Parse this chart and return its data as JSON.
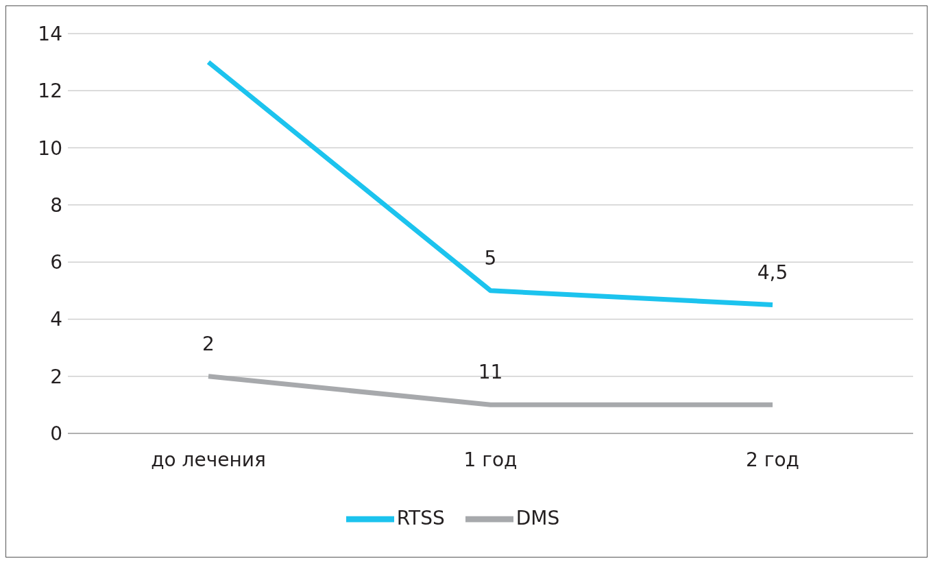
{
  "chart_data": {
    "type": "line",
    "categories": [
      "до лечения",
      "1 год",
      "2 год"
    ],
    "series": [
      {
        "name": "RTSS",
        "color": "#1cc3ee",
        "values": [
          13,
          5,
          4.5
        ],
        "value_labels": [
          null,
          "5",
          "4,5"
        ]
      },
      {
        "name": "DMS",
        "color": "#a7a9ac",
        "values": [
          2,
          1,
          1
        ],
        "value_labels": [
          "2",
          null,
          null
        ]
      }
    ],
    "annotations": [
      {
        "text": "11",
        "x": "1 год",
        "y": 1
      }
    ],
    "ylim": [
      0,
      14
    ],
    "yticks": [
      0,
      2,
      4,
      6,
      8,
      10,
      12,
      14
    ],
    "grid": "y",
    "legend": "bottom",
    "marker": "none",
    "line_style": "solid"
  }
}
